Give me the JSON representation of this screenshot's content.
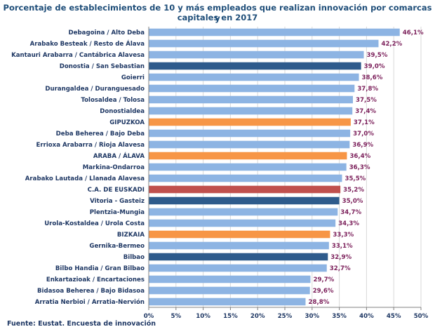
{
  "chart_data": {
    "type": "bar",
    "orientation": "horizontal",
    "title_line1": "Porcentaje de establecimientos de 10 y más empleados que realizan innovación por comarcas y",
    "title_line2": "capitales en 2017",
    "source": "Fuente: Eustat. Encuesta de innovación",
    "xlim": [
      0,
      50
    ],
    "xticks": [
      "0%",
      "5%",
      "10%",
      "15%",
      "20%",
      "25%",
      "30%",
      "35%",
      "40%",
      "45%",
      "50%"
    ],
    "grid": true,
    "colors": {
      "default": "#8db4e3",
      "capital": "#2e5b8c",
      "province": "#f79646",
      "total": "#c0504d"
    },
    "bars": [
      {
        "label": "Debagoina  /  Alto Deba",
        "value": 46.1,
        "value_label": "46,1%",
        "kind": "default"
      },
      {
        "label": "Arabako Besteak  /  Resto de Álava",
        "value": 42.2,
        "value_label": "42,2%",
        "kind": "default"
      },
      {
        "label": "Kantauri Arabarra  /  Cantábrica Alavesa",
        "value": 39.5,
        "value_label": "39,5%",
        "kind": "default"
      },
      {
        "label": "Donostia / San Sebastian",
        "value": 39.0,
        "value_label": "39,0%",
        "kind": "capital"
      },
      {
        "label": "Goierri",
        "value": 38.6,
        "value_label": "38,6%",
        "kind": "default"
      },
      {
        "label": "Durangaldea  /  Duranguesado",
        "value": 37.8,
        "value_label": "37,8%",
        "kind": "default"
      },
      {
        "label": "Tolosaldea  /  Tolosa",
        "value": 37.5,
        "value_label": "37,5%",
        "kind": "default"
      },
      {
        "label": "Donostialdea",
        "value": 37.4,
        "value_label": "37,4%",
        "kind": "default"
      },
      {
        "label": "GIPUZKOA",
        "value": 37.1,
        "value_label": "37,1%",
        "kind": "province"
      },
      {
        "label": "Deba Beherea  /  Bajo Deba",
        "value": 37.0,
        "value_label": "37,0%",
        "kind": "default"
      },
      {
        "label": "Errioxa Arabarra  /  Rioja Alavesa",
        "value": 36.9,
        "value_label": "36,9%",
        "kind": "default"
      },
      {
        "label": "ARABA / ÁLAVA",
        "value": 36.4,
        "value_label": "36,4%",
        "kind": "province"
      },
      {
        "label": "Markina-Ondarroa",
        "value": 36.3,
        "value_label": "36,3%",
        "kind": "default"
      },
      {
        "label": "Arabako Lautada  /  Llanada Alavesa",
        "value": 35.5,
        "value_label": "35,5%",
        "kind": "default"
      },
      {
        "label": "C.A. DE EUSKADI",
        "value": 35.2,
        "value_label": "35,2%",
        "kind": "total"
      },
      {
        "label": "Vitoria - Gasteiz",
        "value": 35.0,
        "value_label": "35,0%",
        "kind": "capital"
      },
      {
        "label": "Plentzia-Mungia",
        "value": 34.7,
        "value_label": "34,7%",
        "kind": "default"
      },
      {
        "label": "Urola-Kostaldea  /  Urola Costa",
        "value": 34.3,
        "value_label": "34,3%",
        "kind": "default"
      },
      {
        "label": "BIZKAIA",
        "value": 33.3,
        "value_label": "33,3%",
        "kind": "province"
      },
      {
        "label": "Gernika-Bermeo",
        "value": 33.1,
        "value_label": "33,1%",
        "kind": "default"
      },
      {
        "label": "Bilbao",
        "value": 32.9,
        "value_label": "32,9%",
        "kind": "capital"
      },
      {
        "label": "Bilbo Handia  /  Gran Bilbao",
        "value": 32.7,
        "value_label": "32,7%",
        "kind": "default"
      },
      {
        "label": "Enkartazioak  /  Encartaciones",
        "value": 29.7,
        "value_label": "29,7%",
        "kind": "default"
      },
      {
        "label": "Bidasoa Beherea  /  Bajo Bidasoa",
        "value": 29.6,
        "value_label": "29,6%",
        "kind": "default"
      },
      {
        "label": "Arratia Nerbioi  /  Arratia-Nervión",
        "value": 28.8,
        "value_label": "28,8%",
        "kind": "default"
      }
    ]
  }
}
